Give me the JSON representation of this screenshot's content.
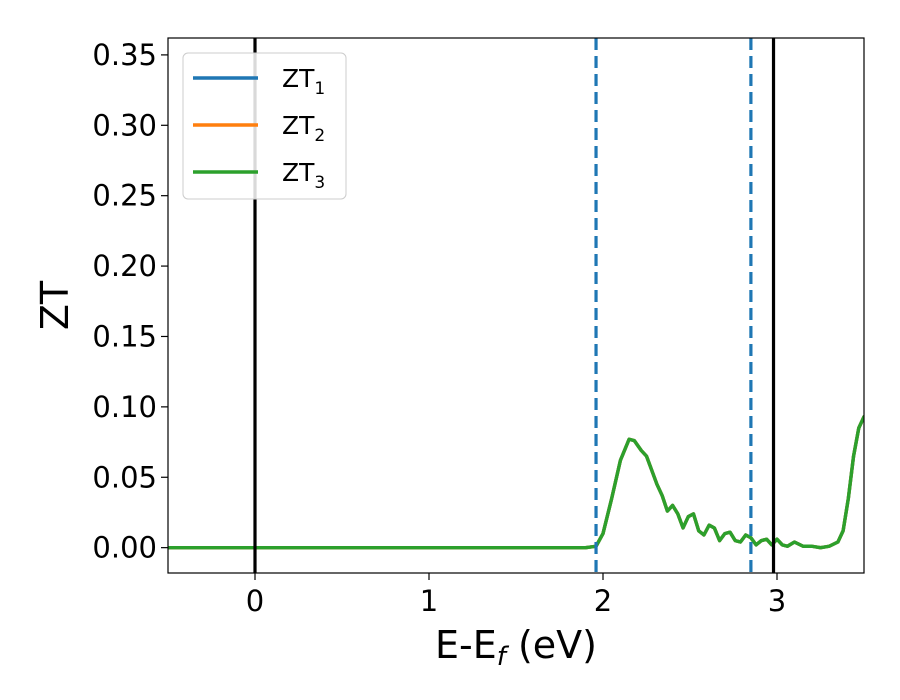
{
  "chart_data": {
    "type": "line",
    "xlabel_main": "E-E",
    "xlabel_sub": "f",
    "xlabel_unit": " (eV)",
    "ylabel": "ZT",
    "xlim": [
      -0.5,
      3.5
    ],
    "ylim": [
      -0.018,
      0.362
    ],
    "xticks": [
      0,
      1,
      2,
      3
    ],
    "yticks": [
      0.0,
      0.05,
      0.1,
      0.15,
      0.2,
      0.25,
      0.3,
      0.35
    ],
    "grid": false,
    "legend_position": "upper-left",
    "vlines_solid": [
      0.0,
      2.98
    ],
    "vlines_dashed": [
      1.96,
      2.85
    ],
    "series": [
      {
        "name": "ZT",
        "subscript": "1",
        "color": "#1f77b4",
        "x": [
          -0.5,
          1.9,
          1.96,
          2.0,
          2.05,
          2.1,
          2.15,
          2.18,
          2.22,
          2.25,
          2.28,
          2.31,
          2.34,
          2.37,
          2.4,
          2.43,
          2.46,
          2.49,
          2.52,
          2.55,
          2.58,
          2.61,
          2.64,
          2.67,
          2.7,
          2.73,
          2.76,
          2.79,
          2.82,
          2.85,
          2.88,
          2.91,
          2.94,
          2.97,
          3.0,
          3.03,
          3.06,
          3.1,
          3.15,
          3.2,
          3.25,
          3.3,
          3.35,
          3.38,
          3.41,
          3.44,
          3.47,
          3.5
        ],
        "y": [
          0.0,
          0.0,
          0.001,
          0.01,
          0.035,
          0.062,
          0.077,
          0.076,
          0.069,
          0.065,
          0.055,
          0.045,
          0.037,
          0.026,
          0.03,
          0.024,
          0.014,
          0.022,
          0.024,
          0.012,
          0.009,
          0.016,
          0.014,
          0.005,
          0.01,
          0.011,
          0.005,
          0.004,
          0.009,
          0.007,
          0.002,
          0.005,
          0.006,
          0.002,
          0.006,
          0.002,
          0.001,
          0.004,
          0.001,
          0.001,
          0.0,
          0.001,
          0.004,
          0.012,
          0.035,
          0.065,
          0.085,
          0.093
        ]
      },
      {
        "name": "ZT",
        "subscript": "2",
        "color": "#ff7f0e",
        "x": [
          -0.5,
          1.9,
          1.96,
          2.0,
          2.05,
          2.1,
          2.15,
          2.18,
          2.22,
          2.25,
          2.28,
          2.31,
          2.34,
          2.37,
          2.4,
          2.43,
          2.46,
          2.49,
          2.52,
          2.55,
          2.58,
          2.61,
          2.64,
          2.67,
          2.7,
          2.73,
          2.76,
          2.79,
          2.82,
          2.85,
          2.88,
          2.91,
          2.94,
          2.97,
          3.0,
          3.03,
          3.06,
          3.1,
          3.15,
          3.2,
          3.25,
          3.3,
          3.35,
          3.38,
          3.41,
          3.44,
          3.47,
          3.5
        ],
        "y": [
          0.0,
          0.0,
          0.001,
          0.01,
          0.035,
          0.062,
          0.077,
          0.076,
          0.069,
          0.065,
          0.055,
          0.045,
          0.037,
          0.026,
          0.03,
          0.024,
          0.014,
          0.022,
          0.024,
          0.012,
          0.009,
          0.016,
          0.014,
          0.005,
          0.01,
          0.011,
          0.005,
          0.004,
          0.009,
          0.007,
          0.002,
          0.005,
          0.006,
          0.002,
          0.006,
          0.002,
          0.001,
          0.004,
          0.001,
          0.001,
          0.0,
          0.001,
          0.004,
          0.012,
          0.035,
          0.065,
          0.085,
          0.093
        ]
      },
      {
        "name": "ZT",
        "subscript": "3",
        "color": "#2ca02c",
        "x": [
          -0.5,
          1.9,
          1.96,
          2.0,
          2.05,
          2.1,
          2.15,
          2.18,
          2.22,
          2.25,
          2.28,
          2.31,
          2.34,
          2.37,
          2.4,
          2.43,
          2.46,
          2.49,
          2.52,
          2.55,
          2.58,
          2.61,
          2.64,
          2.67,
          2.7,
          2.73,
          2.76,
          2.79,
          2.82,
          2.85,
          2.88,
          2.91,
          2.94,
          2.97,
          3.0,
          3.03,
          3.06,
          3.1,
          3.15,
          3.2,
          3.25,
          3.3,
          3.35,
          3.38,
          3.41,
          3.44,
          3.47,
          3.5
        ],
        "y": [
          0.0,
          0.0,
          0.001,
          0.01,
          0.035,
          0.062,
          0.077,
          0.076,
          0.069,
          0.065,
          0.055,
          0.045,
          0.037,
          0.026,
          0.03,
          0.024,
          0.014,
          0.022,
          0.024,
          0.012,
          0.009,
          0.016,
          0.014,
          0.005,
          0.01,
          0.011,
          0.005,
          0.004,
          0.009,
          0.007,
          0.002,
          0.005,
          0.006,
          0.002,
          0.006,
          0.002,
          0.001,
          0.004,
          0.001,
          0.001,
          0.0,
          0.001,
          0.004,
          0.012,
          0.035,
          0.065,
          0.085,
          0.093
        ]
      }
    ],
    "colors": {
      "vline_solid": "#000000",
      "vline_dashed": "#1f77b4"
    }
  }
}
